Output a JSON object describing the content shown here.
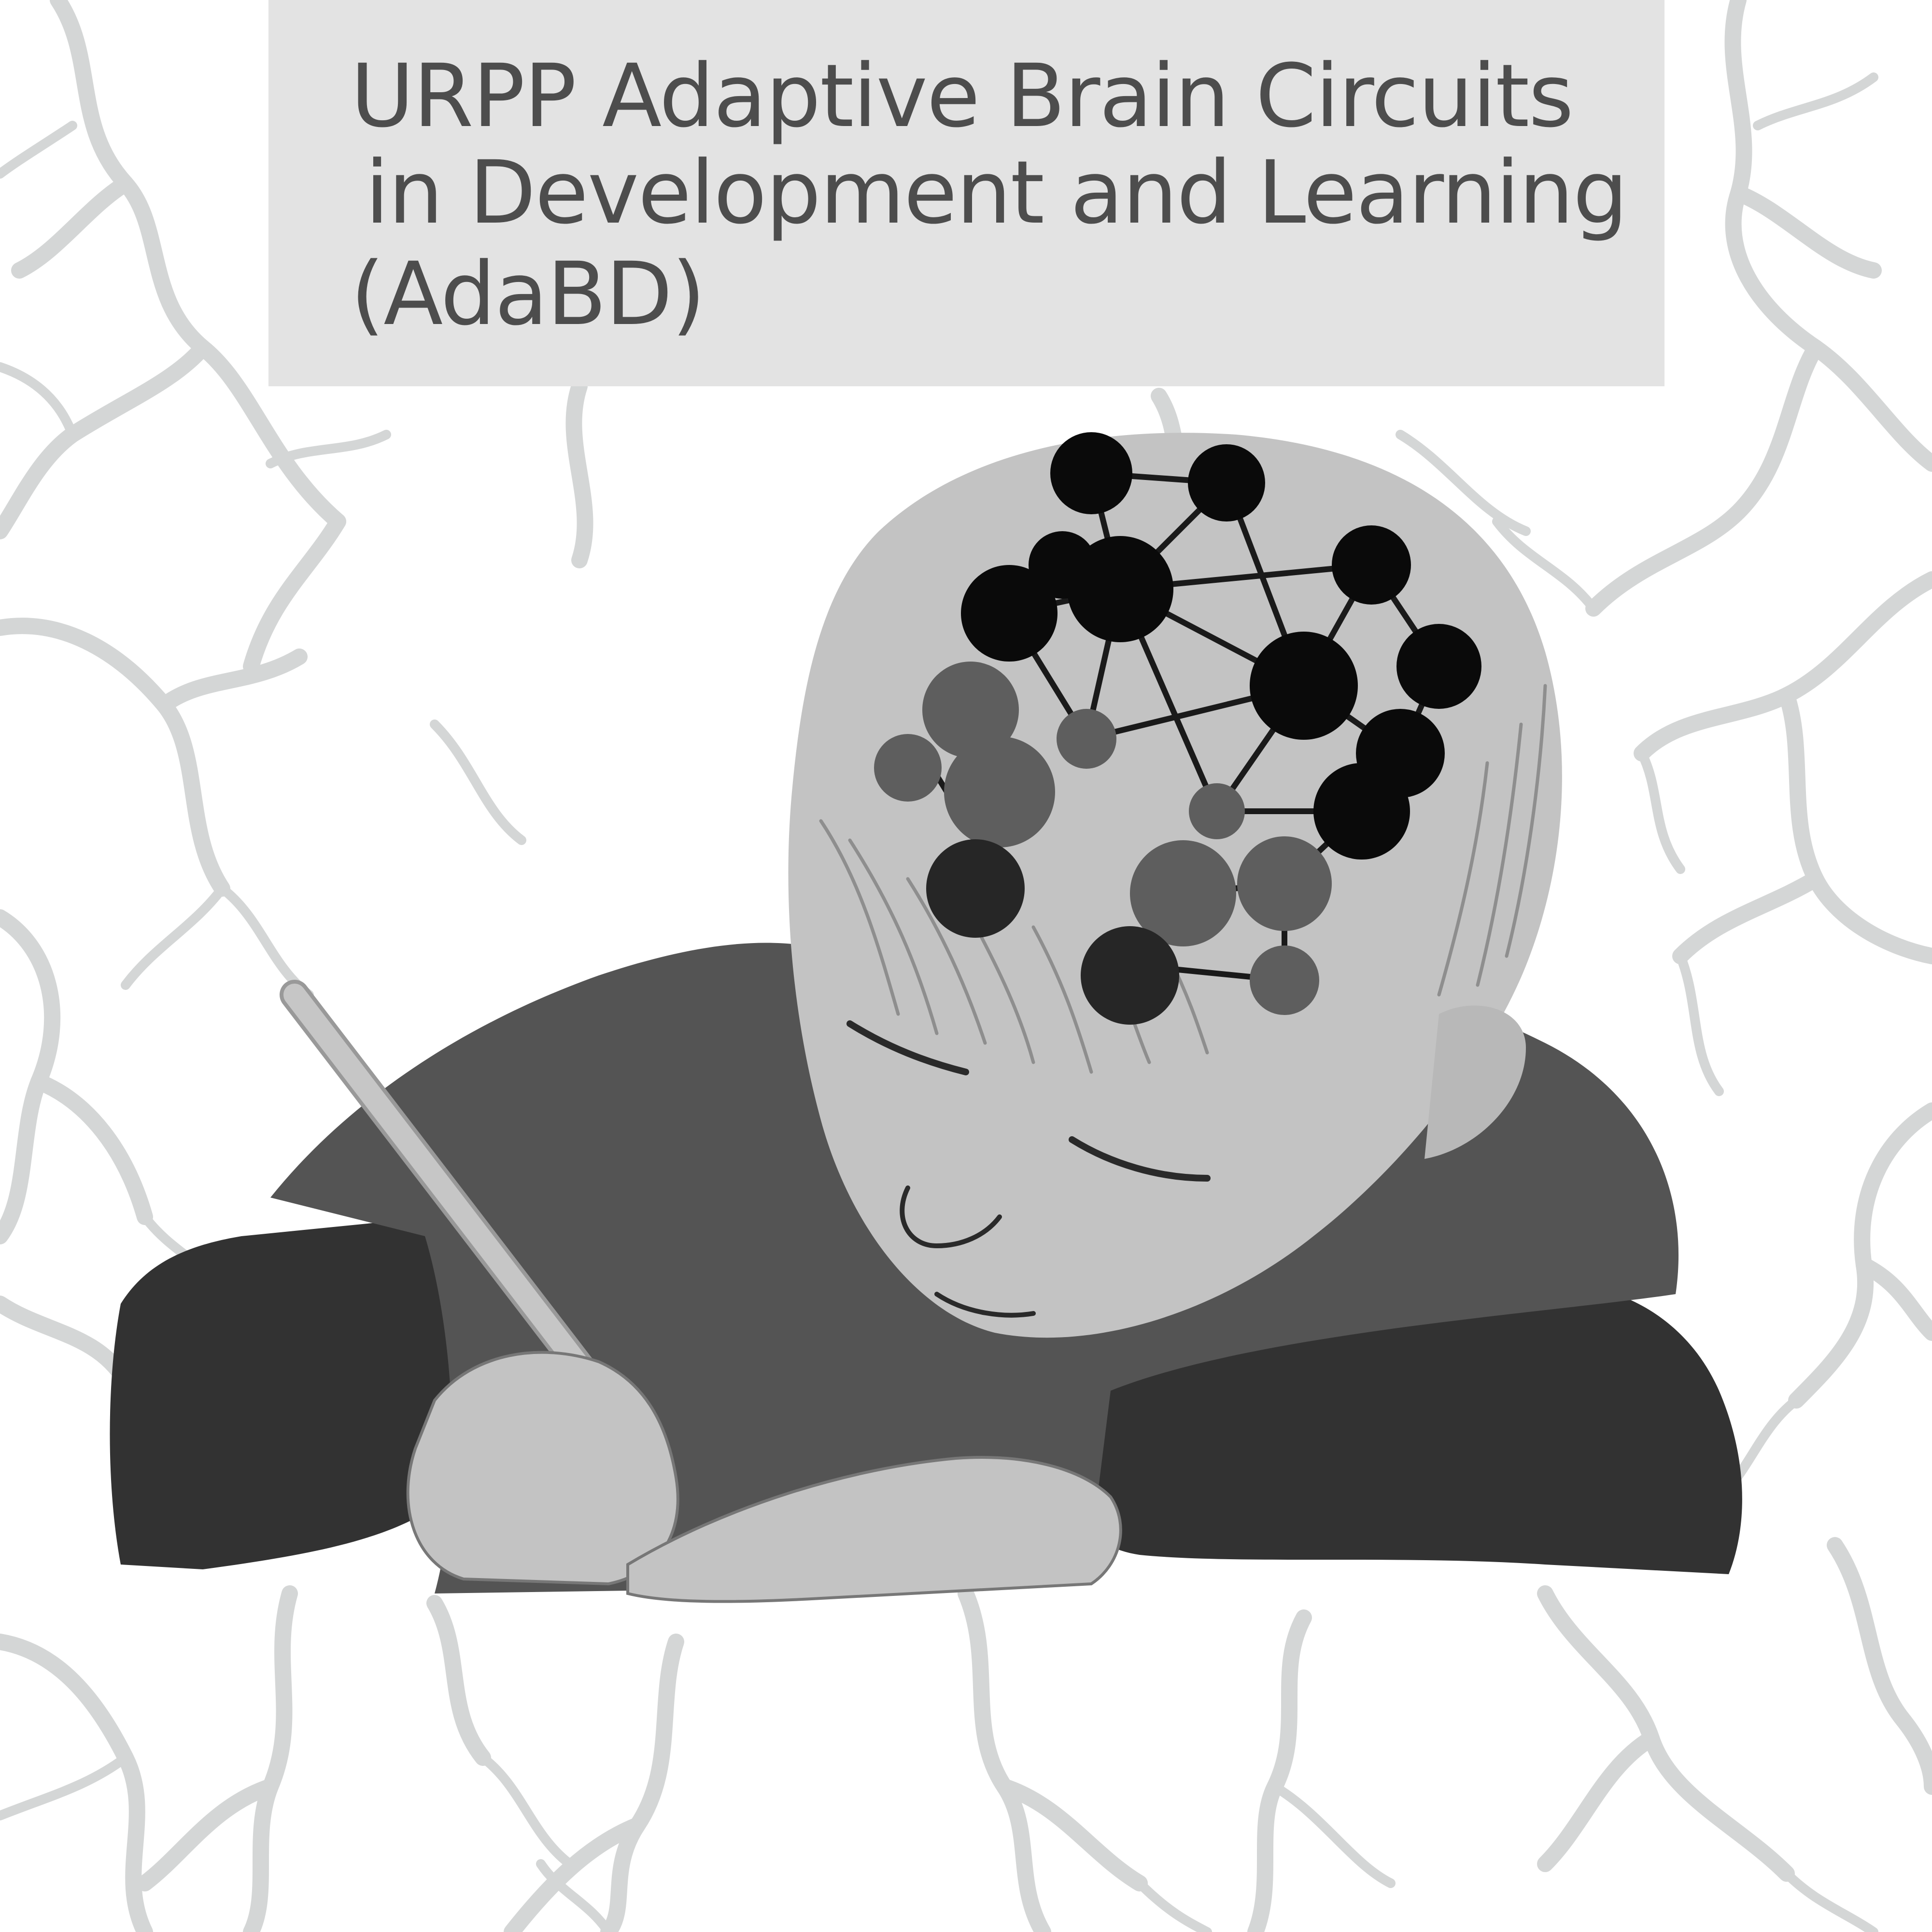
{
  "title": {
    "lines": [
      "URPP Adaptive Brain Circuits",
      "in Development and Learning",
      "(AdaBD)"
    ]
  },
  "colors": {
    "background": "#ffffff",
    "title_box": "#e3e3e3",
    "title_text": "#4d4d4d",
    "vessels": "#d4d6d6",
    "skin": "#c3c3c3",
    "sweater": "#545454",
    "sleeve": "#323232",
    "node_black": "#0a0a0a",
    "node_gray": "#5e5e5e",
    "pencil": "#c6c6c6"
  },
  "illustration": {
    "subject": "child-writing-with-pencil",
    "overlay": "neural-network-nodes",
    "background_pattern": "branching-vessels"
  }
}
